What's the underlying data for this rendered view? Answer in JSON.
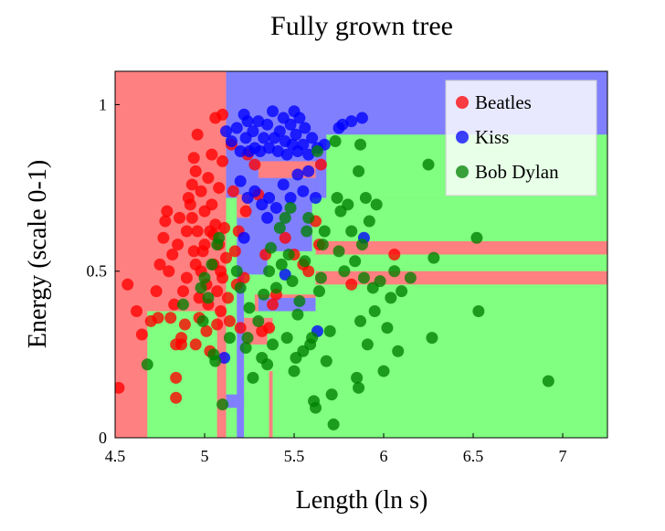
{
  "chart_data": {
    "type": "scatter",
    "title": "Fully grown tree",
    "xlabel": "Length (ln s)",
    "ylabel": "Energy (scale 0-1)",
    "xlim": [
      4.5,
      7.25
    ],
    "ylim": [
      0,
      1.1
    ],
    "xticks": [
      4.5,
      5,
      5.5,
      6,
      6.5,
      7
    ],
    "xtick_labels": [
      "4.5",
      "5",
      "5.5",
      "6",
      "6.5",
      "7"
    ],
    "yticks": [
      0,
      0.5,
      1
    ],
    "ytick_labels": [
      "0",
      "0.5",
      "1"
    ],
    "legend_position": "top-right",
    "grid": false,
    "decision_regions": {
      "base": [
        {
          "class": "Beatles",
          "x": [
            4.5,
            5.12
          ],
          "y": [
            0,
            1.1
          ]
        },
        {
          "class": "Kiss",
          "x": [
            5.12,
            7.25
          ],
          "y": [
            0,
            1.1
          ]
        }
      ],
      "patches": [
        {
          "class": "Bob Dylan",
          "x": [
            5.12,
            5.18
          ],
          "y": [
            0,
            0.72
          ]
        },
        {
          "class": "Bob Dylan",
          "x": [
            5.22,
            7.25
          ],
          "y": [
            0,
            0.49
          ]
        },
        {
          "class": "Bob Dylan",
          "x": [
            5.35,
            7.25
          ],
          "y": [
            0.49,
            0.56
          ]
        },
        {
          "class": "Bob Dylan",
          "x": [
            5.6,
            7.25
          ],
          "y": [
            0.56,
            0.72
          ]
        },
        {
          "class": "Bob Dylan",
          "x": [
            5.68,
            7.25
          ],
          "y": [
            0.72,
            0.91
          ]
        },
        {
          "class": "Bob Dylan",
          "x": [
            4.68,
            5.07
          ],
          "y": [
            0,
            0.38
          ]
        },
        {
          "class": "Beatles",
          "x": [
            5.07,
            5.12
          ],
          "y": [
            0,
            0.2
          ]
        },
        {
          "class": "Beatles",
          "x": [
            5.22,
            5.38
          ],
          "y": [
            0.32,
            0.36
          ]
        },
        {
          "class": "Beatles",
          "x": [
            5.28,
            5.62
          ],
          "y": [
            0.38,
            0.43
          ]
        },
        {
          "class": "Beatles",
          "x": [
            5.62,
            7.25
          ],
          "y": [
            0.46,
            0.5
          ]
        },
        {
          "class": "Beatles",
          "x": [
            5.62,
            7.25
          ],
          "y": [
            0.55,
            0.59
          ]
        },
        {
          "class": "Beatles",
          "x": [
            5.22,
            5.35
          ],
          "y": [
            0.28,
            0.32
          ]
        },
        {
          "class": "Beatles",
          "x": [
            5.36,
            5.38
          ],
          "y": [
            0,
            0.2
          ]
        },
        {
          "class": "Beatles",
          "x": [
            5.18,
            5.25
          ],
          "y": [
            0.66,
            0.73
          ]
        },
        {
          "class": "Beatles",
          "x": [
            5.3,
            5.62
          ],
          "y": [
            0.78,
            0.83
          ]
        },
        {
          "class": "Kiss",
          "x": [
            5.22,
            5.35
          ],
          "y": [
            0.58,
            0.62
          ]
        },
        {
          "class": "Kiss",
          "x": [
            5.25,
            5.62
          ],
          "y": [
            0.72,
            0.76
          ]
        },
        {
          "class": "Kiss",
          "x": [
            5.3,
            5.62
          ],
          "y": [
            0.38,
            0.42
          ]
        },
        {
          "class": "Kiss",
          "x": [
            5.12,
            5.22
          ],
          "y": [
            0.09,
            0.13
          ]
        }
      ]
    },
    "series": [
      {
        "name": "Beatles",
        "color": "#ff0000",
        "points": [
          [
            4.52,
            0.15
          ],
          [
            4.57,
            0.46
          ],
          [
            4.62,
            0.38
          ],
          [
            4.65,
            0.31
          ],
          [
            4.7,
            0.35
          ],
          [
            4.73,
            0.44
          ],
          [
            4.74,
            0.36
          ],
          [
            4.75,
            0.52
          ],
          [
            4.77,
            0.6
          ],
          [
            4.78,
            0.65
          ],
          [
            4.79,
            0.68
          ],
          [
            4.8,
            0.5
          ],
          [
            4.81,
            0.36
          ],
          [
            4.82,
            0.55
          ],
          [
            4.83,
            0.4
          ],
          [
            4.84,
            0.28
          ],
          [
            4.84,
            0.18
          ],
          [
            4.85,
            0.58
          ],
          [
            4.86,
            0.66
          ],
          [
            4.87,
            0.3
          ],
          [
            4.88,
            0.44
          ],
          [
            4.89,
            0.34
          ],
          [
            4.9,
            0.62
          ],
          [
            4.9,
            0.48
          ],
          [
            4.91,
            0.72
          ],
          [
            4.92,
            0.7
          ],
          [
            4.93,
            0.76
          ],
          [
            4.93,
            0.66
          ],
          [
            4.94,
            0.84
          ],
          [
            4.94,
            0.56
          ],
          [
            4.95,
            0.8
          ],
          [
            4.95,
            0.28
          ],
          [
            4.96,
            0.91
          ],
          [
            4.96,
            0.62
          ],
          [
            4.97,
            0.42
          ],
          [
            4.97,
            0.36
          ],
          [
            4.98,
            0.5
          ],
          [
            4.98,
            0.74
          ],
          [
            4.99,
            0.56
          ],
          [
            5.0,
            0.68
          ],
          [
            5.0,
            0.58
          ],
          [
            5.01,
            0.32
          ],
          [
            5.01,
            0.46
          ],
          [
            5.02,
            0.78
          ],
          [
            5.02,
            0.4
          ],
          [
            5.03,
            0.62
          ],
          [
            5.03,
            0.26
          ],
          [
            5.04,
            0.85
          ],
          [
            5.04,
            0.7
          ],
          [
            5.05,
            0.52
          ],
          [
            5.06,
            0.96
          ],
          [
            5.06,
            0.64
          ],
          [
            5.07,
            0.44
          ],
          [
            5.07,
            0.34
          ],
          [
            5.08,
            0.75
          ],
          [
            5.08,
            0.58
          ],
          [
            5.09,
            0.5
          ],
          [
            5.09,
            0.38
          ],
          [
            5.1,
            0.97
          ],
          [
            5.1,
            0.83
          ],
          [
            5.1,
            0.48
          ],
          [
            5.11,
            0.63
          ],
          [
            5.12,
            0.54
          ],
          [
            5.13,
            0.42
          ],
          [
            5.14,
            0.35
          ],
          [
            5.15,
            0.88
          ],
          [
            5.16,
            0.74
          ],
          [
            5.17,
            0.56
          ],
          [
            5.18,
            0.46
          ],
          [
            5.19,
            0.62
          ],
          [
            5.2,
            0.33
          ],
          [
            5.22,
            0.48
          ],
          [
            5.23,
            0.68
          ],
          [
            5.24,
            0.85
          ],
          [
            5.28,
            0.82
          ],
          [
            5.3,
            0.73
          ],
          [
            5.32,
            0.32
          ],
          [
            5.34,
            0.55
          ],
          [
            5.36,
            0.33
          ],
          [
            5.38,
            0.4
          ],
          [
            5.4,
            0.43
          ],
          [
            5.45,
            0.6
          ],
          [
            5.5,
            0.55
          ],
          [
            5.55,
            0.52
          ],
          [
            5.58,
            0.5
          ],
          [
            5.62,
            0.65
          ],
          [
            5.64,
            0.58
          ],
          [
            5.65,
            0.82
          ],
          [
            5.82,
            0.46
          ],
          [
            6.06,
            0.55
          ],
          [
            4.84,
            0.12
          ],
          [
            4.87,
            0.28
          ],
          [
            4.95,
            0.52
          ],
          [
            5.05,
            0.61
          ]
        ]
      },
      {
        "name": "Kiss",
        "color": "#0000ff",
        "points": [
          [
            5.12,
            0.92
          ],
          [
            5.15,
            0.89
          ],
          [
            5.18,
            0.93
          ],
          [
            5.2,
            0.86
          ],
          [
            5.22,
            0.97
          ],
          [
            5.23,
            0.9
          ],
          [
            5.24,
            0.95
          ],
          [
            5.25,
            0.86
          ],
          [
            5.27,
            0.92
          ],
          [
            5.28,
            0.87
          ],
          [
            5.3,
            0.95
          ],
          [
            5.31,
            0.86
          ],
          [
            5.33,
            0.9
          ],
          [
            5.35,
            0.94
          ],
          [
            5.36,
            0.87
          ],
          [
            5.38,
            0.98
          ],
          [
            5.39,
            0.9
          ],
          [
            5.41,
            0.86
          ],
          [
            5.42,
            0.92
          ],
          [
            5.44,
            0.96
          ],
          [
            5.45,
            0.89
          ],
          [
            5.46,
            0.85
          ],
          [
            5.48,
            0.94
          ],
          [
            5.49,
            0.88
          ],
          [
            5.5,
            0.98
          ],
          [
            5.51,
            0.91
          ],
          [
            5.52,
            0.86
          ],
          [
            5.53,
            0.96
          ],
          [
            5.55,
            0.88
          ],
          [
            5.56,
            0.93
          ],
          [
            5.58,
            0.85
          ],
          [
            5.6,
            0.9
          ],
          [
            5.63,
            0.87
          ],
          [
            5.67,
            0.88
          ],
          [
            5.75,
            0.93
          ],
          [
            5.77,
            0.94
          ],
          [
            5.82,
            0.95
          ],
          [
            5.88,
            0.96
          ],
          [
            5.2,
            0.77
          ],
          [
            5.24,
            0.72
          ],
          [
            5.28,
            0.74
          ],
          [
            5.32,
            0.7
          ],
          [
            5.36,
            0.72
          ],
          [
            5.4,
            0.69
          ],
          [
            5.44,
            0.76
          ],
          [
            5.48,
            0.72
          ],
          [
            5.52,
            0.79
          ],
          [
            5.55,
            0.74
          ],
          [
            5.58,
            0.8
          ],
          [
            5.62,
            0.72
          ],
          [
            5.22,
            0.6
          ],
          [
            5.35,
            0.66
          ],
          [
            5.45,
            0.49
          ],
          [
            5.63,
            0.32
          ],
          [
            5.11,
            0.24
          ],
          [
            5.89,
            0.6
          ]
        ]
      },
      {
        "name": "Bob Dylan",
        "color": "#008000",
        "points": [
          [
            4.68,
            0.22
          ],
          [
            4.88,
            0.4
          ],
          [
            4.98,
            0.45
          ],
          [
            4.99,
            0.35
          ],
          [
            5.0,
            0.48
          ],
          [
            5.02,
            0.42
          ],
          [
            5.04,
            0.52
          ],
          [
            5.05,
            0.25
          ],
          [
            5.06,
            0.23
          ],
          [
            5.07,
            0.58
          ],
          [
            5.08,
            0.6
          ],
          [
            5.1,
            0.1
          ],
          [
            5.14,
            0.3
          ],
          [
            5.18,
            0.5
          ],
          [
            5.2,
            0.45
          ],
          [
            5.23,
            0.27
          ],
          [
            5.24,
            0.3
          ],
          [
            5.25,
            0.39
          ],
          [
            5.27,
            0.18
          ],
          [
            5.3,
            0.35
          ],
          [
            5.32,
            0.24
          ],
          [
            5.33,
            0.43
          ],
          [
            5.35,
            0.22
          ],
          [
            5.36,
            0.5
          ],
          [
            5.37,
            0.57
          ],
          [
            5.38,
            0.28
          ],
          [
            5.4,
            0.45
          ],
          [
            5.42,
            0.63
          ],
          [
            5.43,
            0.52
          ],
          [
            5.45,
            0.66
          ],
          [
            5.46,
            0.3
          ],
          [
            5.47,
            0.55
          ],
          [
            5.48,
            0.69
          ],
          [
            5.49,
            0.47
          ],
          [
            5.5,
            0.2
          ],
          [
            5.51,
            0.24
          ],
          [
            5.52,
            0.37
          ],
          [
            5.53,
            0.41
          ],
          [
            5.55,
            0.26
          ],
          [
            5.56,
            0.53
          ],
          [
            5.57,
            0.62
          ],
          [
            5.58,
            0.66
          ],
          [
            5.59,
            0.28
          ],
          [
            5.6,
            0.3
          ],
          [
            5.61,
            0.11
          ],
          [
            5.62,
            0.09
          ],
          [
            5.63,
            0.86
          ],
          [
            5.64,
            0.44
          ],
          [
            5.65,
            0.48
          ],
          [
            5.66,
            0.58
          ],
          [
            5.67,
            0.62
          ],
          [
            5.68,
            0.23
          ],
          [
            5.7,
            0.32
          ],
          [
            5.71,
            0.13
          ],
          [
            5.72,
            0.04
          ],
          [
            5.73,
            0.89
          ],
          [
            5.74,
            0.72
          ],
          [
            5.75,
            0.56
          ],
          [
            5.76,
            0.68
          ],
          [
            5.78,
            0.5
          ],
          [
            5.8,
            0.7
          ],
          [
            5.82,
            0.62
          ],
          [
            5.84,
            0.53
          ],
          [
            5.85,
            0.18
          ],
          [
            5.86,
            0.15
          ],
          [
            5.87,
            0.35
          ],
          [
            5.88,
            0.58
          ],
          [
            5.89,
            0.48
          ],
          [
            5.9,
            0.72
          ],
          [
            5.91,
            0.28
          ],
          [
            5.92,
            0.65
          ],
          [
            5.94,
            0.45
          ],
          [
            5.95,
            0.38
          ],
          [
            5.96,
            0.7
          ],
          [
            5.98,
            0.47
          ],
          [
            6.0,
            0.2
          ],
          [
            6.02,
            0.33
          ],
          [
            6.04,
            0.42
          ],
          [
            6.06,
            0.5
          ],
          [
            6.08,
            0.26
          ],
          [
            6.1,
            0.44
          ],
          [
            6.15,
            0.48
          ],
          [
            6.25,
            0.82
          ],
          [
            6.27,
            0.3
          ],
          [
            6.28,
            0.54
          ],
          [
            6.52,
            0.6
          ],
          [
            6.53,
            0.38
          ],
          [
            6.92,
            0.17
          ],
          [
            5.86,
            0.8
          ],
          [
            5.87,
            0.88
          ]
        ]
      }
    ]
  }
}
